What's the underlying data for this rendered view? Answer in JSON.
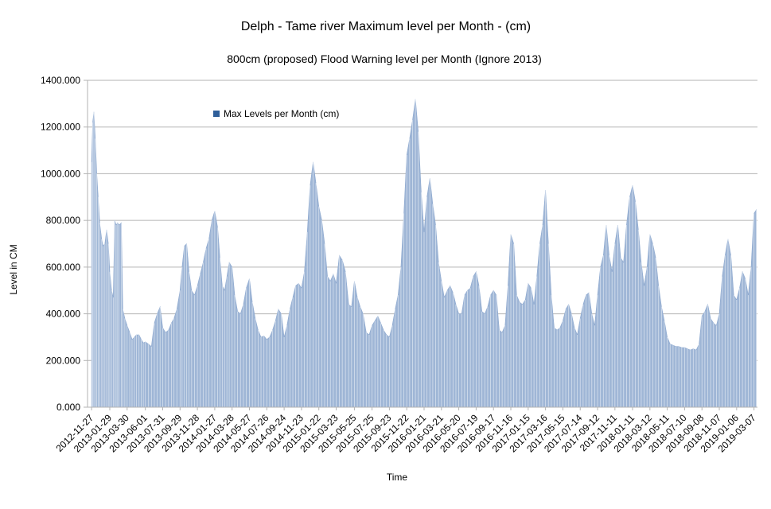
{
  "chart_data": {
    "type": "area",
    "title": "Delph - Tame river Maximum level per Month  - (cm)",
    "subtitle": "800cm  (proposed) Flood Warning level per Month (Ignore 2013)",
    "xlabel": "Time",
    "ylabel": "Level in CM",
    "ylim": [
      0,
      1400
    ],
    "y_ticks": [
      "0.000",
      "200.000",
      "400.000",
      "600.000",
      "800.000",
      "1000.000",
      "1200.000",
      "1400.000"
    ],
    "grid": "horizontal",
    "legend": "top-left",
    "legend_entries": [
      "Max Levels per Month (cm)"
    ],
    "series_color": "#9fb6d6",
    "legend_swatch_color": "#2f5f9a",
    "x_ticks": [
      "2012-11-27",
      "2013-01-29",
      "2013-03-30",
      "2013-06-01",
      "2013-07-31",
      "2013-09-29",
      "2013-11-28",
      "2014-01-27",
      "2014-03-28",
      "2014-05-27",
      "2014-07-26",
      "2014-09-24",
      "2014-11-23",
      "2015-01-22",
      "2015-03-23",
      "2015-05-25",
      "2015-07-25",
      "2015-09-23",
      "2015-11-22",
      "2016-01-21",
      "2016-03-21",
      "2016-05-20",
      "2016-07-19",
      "2016-09-17",
      "2016-11-16",
      "2017-01-15",
      "2017-03-16",
      "2017-05-15",
      "2017-07-14",
      "2017-09-12",
      "2017-11-11",
      "2018-01-11",
      "2018-03-12",
      "2018-05-11",
      "2018-07-10",
      "2018-09-08",
      "2018-11-07",
      "2019-01-06",
      "2019-03-07"
    ],
    "series": [
      {
        "name": "Max Levels per Month (cm)",
        "points": [
          [
            "2012-11-27",
            1050
          ],
          [
            "2012-12-01",
            1220
          ],
          [
            "2012-12-05",
            1265
          ],
          [
            "2012-12-10",
            1150
          ],
          [
            "2012-12-15",
            1000
          ],
          [
            "2012-12-20",
            900
          ],
          [
            "2012-12-25",
            790
          ],
          [
            "2013-01-01",
            720
          ],
          [
            "2013-01-06",
            690
          ],
          [
            "2013-01-12",
            700
          ],
          [
            "2013-01-18",
            760
          ],
          [
            "2013-01-24",
            700
          ],
          [
            "2013-01-29",
            580
          ],
          [
            "2013-02-04",
            500
          ],
          [
            "2013-02-10",
            470
          ],
          [
            "2013-02-15",
            800
          ],
          [
            "2013-02-20",
            780
          ],
          [
            "2013-02-25",
            790
          ],
          [
            "2013-03-02",
            780
          ],
          [
            "2013-03-10",
            790
          ],
          [
            "2013-03-15",
            420
          ],
          [
            "2013-03-22",
            380
          ],
          [
            "2013-03-30",
            350
          ],
          [
            "2013-04-08",
            320
          ],
          [
            "2013-04-16",
            290
          ],
          [
            "2013-04-24",
            300
          ],
          [
            "2013-05-01",
            310
          ],
          [
            "2013-05-10",
            310
          ],
          [
            "2013-05-18",
            290
          ],
          [
            "2013-05-25",
            275
          ],
          [
            "2013-06-01",
            280
          ],
          [
            "2013-06-12",
            270
          ],
          [
            "2013-06-22",
            260
          ],
          [
            "2013-07-02",
            360
          ],
          [
            "2013-07-12",
            400
          ],
          [
            "2013-07-22",
            430
          ],
          [
            "2013-07-31",
            340
          ],
          [
            "2013-08-10",
            320
          ],
          [
            "2013-08-20",
            330
          ],
          [
            "2013-08-30",
            360
          ],
          [
            "2013-09-08",
            380
          ],
          [
            "2013-09-18",
            420
          ],
          [
            "2013-09-29",
            500
          ],
          [
            "2013-10-06",
            600
          ],
          [
            "2013-10-14",
            690
          ],
          [
            "2013-10-22",
            700
          ],
          [
            "2013-10-30",
            580
          ],
          [
            "2013-11-08",
            500
          ],
          [
            "2013-11-18",
            480
          ],
          [
            "2013-11-28",
            520
          ],
          [
            "2013-12-08",
            570
          ],
          [
            "2013-12-18",
            620
          ],
          [
            "2013-12-28",
            680
          ],
          [
            "2014-01-07",
            720
          ],
          [
            "2014-01-17",
            800
          ],
          [
            "2014-01-27",
            840
          ],
          [
            "2014-02-06",
            770
          ],
          [
            "2014-02-14",
            640
          ],
          [
            "2014-02-22",
            520
          ],
          [
            "2014-03-02",
            500
          ],
          [
            "2014-03-10",
            560
          ],
          [
            "2014-03-18",
            620
          ],
          [
            "2014-03-28",
            600
          ],
          [
            "2014-04-06",
            480
          ],
          [
            "2014-04-16",
            410
          ],
          [
            "2014-04-26",
            400
          ],
          [
            "2014-05-06",
            440
          ],
          [
            "2014-05-16",
            510
          ],
          [
            "2014-05-27",
            550
          ],
          [
            "2014-06-06",
            450
          ],
          [
            "2014-06-16",
            380
          ],
          [
            "2014-06-26",
            330
          ],
          [
            "2014-07-06",
            300
          ],
          [
            "2014-07-16",
            305
          ],
          [
            "2014-07-26",
            290
          ],
          [
            "2014-08-05",
            300
          ],
          [
            "2014-08-15",
            330
          ],
          [
            "2014-08-25",
            370
          ],
          [
            "2014-09-04",
            420
          ],
          [
            "2014-09-14",
            400
          ],
          [
            "2014-09-24",
            300
          ],
          [
            "2014-10-04",
            350
          ],
          [
            "2014-10-14",
            420
          ],
          [
            "2014-10-24",
            470
          ],
          [
            "2014-11-03",
            520
          ],
          [
            "2014-11-13",
            530
          ],
          [
            "2014-11-23",
            510
          ],
          [
            "2014-12-03",
            580
          ],
          [
            "2014-12-13",
            750
          ],
          [
            "2014-12-23",
            950
          ],
          [
            "2015-01-02",
            1050
          ],
          [
            "2015-01-12",
            960
          ],
          [
            "2015-01-22",
            860
          ],
          [
            "2015-02-01",
            800
          ],
          [
            "2015-02-11",
            700
          ],
          [
            "2015-02-21",
            560
          ],
          [
            "2015-03-03",
            540
          ],
          [
            "2015-03-13",
            570
          ],
          [
            "2015-03-23",
            530
          ],
          [
            "2015-04-03",
            650
          ],
          [
            "2015-04-13",
            630
          ],
          [
            "2015-04-24",
            580
          ],
          [
            "2015-05-05",
            440
          ],
          [
            "2015-05-15",
            430
          ],
          [
            "2015-05-25",
            540
          ],
          [
            "2015-06-04",
            470
          ],
          [
            "2015-06-14",
            430
          ],
          [
            "2015-06-24",
            400
          ],
          [
            "2015-07-05",
            320
          ],
          [
            "2015-07-15",
            310
          ],
          [
            "2015-07-25",
            350
          ],
          [
            "2015-08-04",
            370
          ],
          [
            "2015-08-14",
            390
          ],
          [
            "2015-08-24",
            360
          ],
          [
            "2015-09-03",
            330
          ],
          [
            "2015-09-13",
            310
          ],
          [
            "2015-09-23",
            300
          ],
          [
            "2015-10-03",
            350
          ],
          [
            "2015-10-13",
            420
          ],
          [
            "2015-10-23",
            480
          ],
          [
            "2015-11-02",
            600
          ],
          [
            "2015-11-12",
            830
          ],
          [
            "2015-11-22",
            1080
          ],
          [
            "2015-12-02",
            1150
          ],
          [
            "2015-12-12",
            1230
          ],
          [
            "2015-12-22",
            1320
          ],
          [
            "2016-01-01",
            1180
          ],
          [
            "2016-01-11",
            920
          ],
          [
            "2016-01-21",
            750
          ],
          [
            "2016-01-31",
            900
          ],
          [
            "2016-02-10",
            980
          ],
          [
            "2016-02-20",
            870
          ],
          [
            "2016-03-01",
            780
          ],
          [
            "2016-03-11",
            620
          ],
          [
            "2016-03-21",
            540
          ],
          [
            "2016-03-31",
            470
          ],
          [
            "2016-04-10",
            500
          ],
          [
            "2016-04-20",
            520
          ],
          [
            "2016-04-30",
            490
          ],
          [
            "2016-05-10",
            440
          ],
          [
            "2016-05-20",
            400
          ],
          [
            "2016-05-30",
            400
          ],
          [
            "2016-06-09",
            480
          ],
          [
            "2016-06-19",
            500
          ],
          [
            "2016-06-29",
            510
          ],
          [
            "2016-07-09",
            560
          ],
          [
            "2016-07-19",
            580
          ],
          [
            "2016-07-29",
            520
          ],
          [
            "2016-08-08",
            410
          ],
          [
            "2016-08-18",
            400
          ],
          [
            "2016-08-28",
            430
          ],
          [
            "2016-09-07",
            480
          ],
          [
            "2016-09-17",
            500
          ],
          [
            "2016-09-27",
            480
          ],
          [
            "2016-10-07",
            330
          ],
          [
            "2016-10-17",
            320
          ],
          [
            "2016-10-27",
            350
          ],
          [
            "2016-11-06",
            520
          ],
          [
            "2016-11-16",
            740
          ],
          [
            "2016-11-26",
            700
          ],
          [
            "2016-12-06",
            480
          ],
          [
            "2016-12-16",
            450
          ],
          [
            "2016-12-26",
            440
          ],
          [
            "2017-01-05",
            460
          ],
          [
            "2017-01-15",
            530
          ],
          [
            "2017-01-25",
            510
          ],
          [
            "2017-02-04",
            440
          ],
          [
            "2017-02-14",
            560
          ],
          [
            "2017-02-24",
            700
          ],
          [
            "2017-03-06",
            780
          ],
          [
            "2017-03-16",
            930
          ],
          [
            "2017-03-26",
            700
          ],
          [
            "2017-04-05",
            480
          ],
          [
            "2017-04-15",
            340
          ],
          [
            "2017-04-25",
            330
          ],
          [
            "2017-05-05",
            340
          ],
          [
            "2017-05-15",
            370
          ],
          [
            "2017-05-25",
            420
          ],
          [
            "2017-06-04",
            440
          ],
          [
            "2017-06-14",
            400
          ],
          [
            "2017-06-24",
            340
          ],
          [
            "2017-07-04",
            310
          ],
          [
            "2017-07-14",
            380
          ],
          [
            "2017-07-24",
            440
          ],
          [
            "2017-08-03",
            480
          ],
          [
            "2017-08-13",
            490
          ],
          [
            "2017-08-23",
            400
          ],
          [
            "2017-09-02",
            350
          ],
          [
            "2017-09-12",
            480
          ],
          [
            "2017-09-22",
            600
          ],
          [
            "2017-10-02",
            650
          ],
          [
            "2017-10-12",
            780
          ],
          [
            "2017-10-22",
            650
          ],
          [
            "2017-11-01",
            580
          ],
          [
            "2017-11-11",
            700
          ],
          [
            "2017-11-21",
            780
          ],
          [
            "2017-12-01",
            640
          ],
          [
            "2017-12-11",
            620
          ],
          [
            "2017-12-21",
            780
          ],
          [
            "2018-01-01",
            900
          ],
          [
            "2018-01-11",
            950
          ],
          [
            "2018-01-21",
            880
          ],
          [
            "2018-01-31",
            760
          ],
          [
            "2018-02-10",
            620
          ],
          [
            "2018-02-20",
            520
          ],
          [
            "2018-03-02",
            600
          ],
          [
            "2018-03-12",
            740
          ],
          [
            "2018-03-22",
            700
          ],
          [
            "2018-04-01",
            640
          ],
          [
            "2018-04-11",
            520
          ],
          [
            "2018-04-21",
            430
          ],
          [
            "2018-05-01",
            370
          ],
          [
            "2018-05-11",
            300
          ],
          [
            "2018-05-21",
            270
          ],
          [
            "2018-05-31",
            265
          ],
          [
            "2018-06-10",
            260
          ],
          [
            "2018-06-20",
            260
          ],
          [
            "2018-06-30",
            255
          ],
          [
            "2018-07-10",
            255
          ],
          [
            "2018-07-20",
            250
          ],
          [
            "2018-07-30",
            245
          ],
          [
            "2018-08-09",
            250
          ],
          [
            "2018-08-19",
            245
          ],
          [
            "2018-08-29",
            270
          ],
          [
            "2018-09-08",
            390
          ],
          [
            "2018-09-18",
            410
          ],
          [
            "2018-09-28",
            440
          ],
          [
            "2018-10-08",
            380
          ],
          [
            "2018-10-18",
            360
          ],
          [
            "2018-10-28",
            350
          ],
          [
            "2018-11-07",
            400
          ],
          [
            "2018-11-17",
            560
          ],
          [
            "2018-11-27",
            650
          ],
          [
            "2018-12-07",
            720
          ],
          [
            "2018-12-17",
            650
          ],
          [
            "2018-12-27",
            480
          ],
          [
            "2019-01-06",
            460
          ],
          [
            "2019-01-16",
            510
          ],
          [
            "2019-01-26",
            580
          ],
          [
            "2019-02-05",
            550
          ],
          [
            "2019-02-15",
            480
          ],
          [
            "2019-02-25",
            600
          ],
          [
            "2019-03-07",
            830
          ],
          [
            "2019-03-15",
            845
          ]
        ]
      }
    ]
  }
}
